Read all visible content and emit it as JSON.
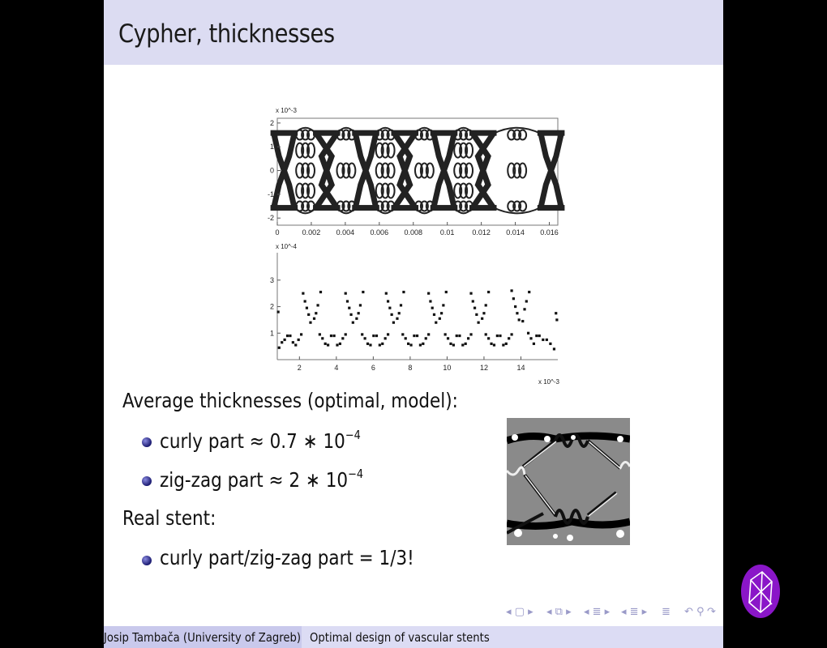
{
  "slide": {
    "title": "Cypher, thicknesses",
    "heading1": "Average thicknesses (optimal, model):",
    "bullets1": [
      {
        "text": "curly part ≈ 0.7 ∗ 10",
        "exp": "−4"
      },
      {
        "text": "zig-zag part ≈ 2 ∗ 10",
        "exp": "−4"
      }
    ],
    "heading2": "Real stent:",
    "bullets2": [
      {
        "text": "curly part/zig-zag part = 1/3!"
      }
    ]
  },
  "footer": {
    "author": "Josip Tambača  (University of Zagreb)",
    "talk_title": "Optimal design of vascular stents"
  },
  "nav_icons": [
    "frame-nav-icon",
    "subsection-nav-icon",
    "section-nav-icon",
    "presentation-nav-icon",
    "align-icon",
    "undo-icon",
    "search-icon",
    "redo-icon"
  ],
  "colors": {
    "title_bar": "#dcdcf2",
    "footer_left": "#c9c9ec",
    "footer_right": "#dcdcf4",
    "logo": "#8a16c8"
  },
  "chart_data": [
    {
      "type": "line",
      "title": "",
      "xlim": [
        0,
        0.0165
      ],
      "ylim": [
        -2.3,
        2.2
      ],
      "y_multiplier": "x 10^-3",
      "xticks": [
        "0",
        "0.002",
        "0.004",
        "0.006",
        "0.008",
        "0.01",
        "0.012",
        "0.014",
        "0.016"
      ],
      "yticks": [
        "-2",
        "-1",
        "0",
        "1",
        "2"
      ],
      "description_of_marks": "stent mesh geometry"
    },
    {
      "type": "scatter",
      "xlim": [
        0.8,
        16
      ],
      "ylim": [
        0,
        4.4
      ],
      "y_multiplier": "x 10^-4",
      "x_multiplier": "x 10^-3",
      "xticks": [
        "2",
        "4",
        "6",
        "8",
        "10",
        "12",
        "14"
      ],
      "yticks": [
        "1",
        "2",
        "3"
      ],
      "points": [
        [
          0.85,
          1.8
        ],
        [
          15.9,
          1.75
        ],
        [
          15.95,
          1.5
        ],
        [
          2.2,
          2.5
        ],
        [
          2.3,
          2.2
        ],
        [
          2.4,
          1.95
        ],
        [
          2.5,
          1.7
        ],
        [
          2.6,
          1.4
        ],
        [
          2.8,
          1.55
        ],
        [
          2.9,
          1.75
        ],
        [
          3.0,
          2.05
        ],
        [
          3.15,
          2.55
        ],
        [
          4.5,
          2.5
        ],
        [
          4.6,
          2.2
        ],
        [
          4.7,
          1.95
        ],
        [
          4.8,
          1.7
        ],
        [
          4.9,
          1.4
        ],
        [
          5.1,
          1.55
        ],
        [
          5.2,
          1.75
        ],
        [
          5.3,
          2.05
        ],
        [
          5.45,
          2.55
        ],
        [
          6.7,
          2.5
        ],
        [
          6.8,
          2.2
        ],
        [
          6.9,
          1.95
        ],
        [
          7.0,
          1.7
        ],
        [
          7.1,
          1.4
        ],
        [
          7.3,
          1.55
        ],
        [
          7.4,
          1.75
        ],
        [
          7.5,
          2.05
        ],
        [
          7.65,
          2.55
        ],
        [
          9.0,
          2.5
        ],
        [
          9.1,
          2.2
        ],
        [
          9.2,
          1.95
        ],
        [
          9.3,
          1.7
        ],
        [
          9.4,
          1.4
        ],
        [
          9.6,
          1.55
        ],
        [
          9.7,
          1.75
        ],
        [
          9.8,
          2.05
        ],
        [
          9.95,
          2.55
        ],
        [
          11.3,
          2.5
        ],
        [
          11.4,
          2.2
        ],
        [
          11.5,
          1.95
        ],
        [
          11.6,
          1.7
        ],
        [
          11.7,
          1.4
        ],
        [
          11.9,
          1.55
        ],
        [
          12.0,
          1.75
        ],
        [
          12.1,
          2.05
        ],
        [
          12.25,
          2.55
        ],
        [
          13.5,
          2.6
        ],
        [
          13.6,
          2.3
        ],
        [
          13.7,
          2.0
        ],
        [
          13.8,
          1.75
        ],
        [
          13.9,
          1.5
        ],
        [
          14.1,
          1.45
        ],
        [
          14.2,
          1.9
        ],
        [
          14.3,
          2.2
        ],
        [
          14.45,
          2.55
        ],
        [
          0.9,
          0.45
        ],
        [
          1.05,
          0.65
        ],
        [
          1.2,
          0.75
        ],
        [
          1.35,
          0.9
        ],
        [
          1.5,
          0.9
        ],
        [
          1.65,
          0.65
        ],
        [
          1.8,
          0.55
        ],
        [
          1.95,
          0.75
        ],
        [
          2.1,
          0.95
        ],
        [
          3.1,
          0.95
        ],
        [
          3.25,
          0.8
        ],
        [
          3.4,
          0.6
        ],
        [
          3.55,
          0.55
        ],
        [
          3.72,
          0.9
        ],
        [
          3.88,
          0.9
        ],
        [
          4.05,
          0.55
        ],
        [
          4.2,
          0.6
        ],
        [
          4.35,
          0.8
        ],
        [
          4.5,
          0.95
        ],
        [
          5.4,
          0.95
        ],
        [
          5.55,
          0.8
        ],
        [
          5.7,
          0.6
        ],
        [
          5.85,
          0.55
        ],
        [
          6.02,
          0.9
        ],
        [
          6.18,
          0.9
        ],
        [
          6.35,
          0.55
        ],
        [
          6.5,
          0.6
        ],
        [
          6.65,
          0.8
        ],
        [
          6.8,
          0.95
        ],
        [
          7.6,
          0.95
        ],
        [
          7.75,
          0.8
        ],
        [
          7.9,
          0.6
        ],
        [
          8.05,
          0.55
        ],
        [
          8.22,
          0.9
        ],
        [
          8.38,
          0.9
        ],
        [
          8.55,
          0.55
        ],
        [
          8.7,
          0.6
        ],
        [
          8.85,
          0.8
        ],
        [
          9.0,
          0.95
        ],
        [
          9.9,
          0.95
        ],
        [
          10.05,
          0.8
        ],
        [
          10.2,
          0.6
        ],
        [
          10.35,
          0.55
        ],
        [
          10.52,
          0.9
        ],
        [
          10.68,
          0.9
        ],
        [
          10.85,
          0.55
        ],
        [
          11.0,
          0.6
        ],
        [
          11.15,
          0.8
        ],
        [
          11.3,
          0.95
        ],
        [
          12.1,
          0.95
        ],
        [
          12.25,
          0.8
        ],
        [
          12.4,
          0.6
        ],
        [
          12.55,
          0.55
        ],
        [
          12.72,
          0.9
        ],
        [
          12.88,
          0.9
        ],
        [
          13.05,
          0.55
        ],
        [
          13.2,
          0.6
        ],
        [
          13.35,
          0.8
        ],
        [
          13.5,
          0.95
        ],
        [
          14.4,
          1.0
        ],
        [
          14.55,
          0.8
        ],
        [
          14.7,
          0.6
        ],
        [
          14.85,
          0.9
        ],
        [
          15.0,
          0.9
        ],
        [
          15.2,
          0.75
        ],
        [
          15.4,
          0.75
        ],
        [
          15.6,
          0.6
        ],
        [
          15.8,
          0.4
        ]
      ]
    }
  ]
}
